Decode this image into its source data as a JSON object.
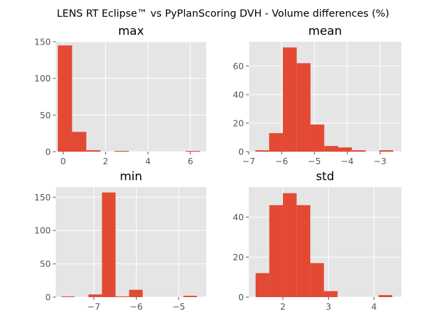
{
  "figure": {
    "suptitle": "LENS RT Eclipse™ vs PyPlanScoring DVH - Volume differences (%)"
  },
  "style": {
    "bar_color": "#E24A33",
    "axes_bg": "#E5E5E5",
    "grid_color": "#ffffff",
    "tick_color": "#555555"
  },
  "chart_data": [
    {
      "type": "bar",
      "title": "max",
      "xlabel": "",
      "ylabel": "",
      "xlim": [
        -0.35,
        6.75
      ],
      "ylim": [
        0,
        150
      ],
      "xticks": [
        0,
        2,
        4,
        6
      ],
      "yticks": [
        0,
        50,
        100,
        150
      ],
      "bins": [
        {
          "x0": -0.25,
          "x1": 0.42,
          "count": 145
        },
        {
          "x0": 0.42,
          "x1": 1.09,
          "count": 27
        },
        {
          "x0": 1.09,
          "x1": 1.76,
          "count": 2
        },
        {
          "x0": 1.76,
          "x1": 2.43,
          "count": 0
        },
        {
          "x0": 2.43,
          "x1": 3.1,
          "count": 1
        },
        {
          "x0": 3.1,
          "x1": 3.77,
          "count": 0
        },
        {
          "x0": 3.77,
          "x1": 4.44,
          "count": 0
        },
        {
          "x0": 4.44,
          "x1": 5.11,
          "count": 0
        },
        {
          "x0": 5.11,
          "x1": 5.78,
          "count": 0
        },
        {
          "x0": 5.78,
          "x1": 6.45,
          "count": 1
        }
      ]
    },
    {
      "type": "bar",
      "title": "mean",
      "xlabel": "",
      "ylabel": "",
      "xlim": [
        -7.0,
        -2.35
      ],
      "ylim": [
        0,
        77
      ],
      "xticks": [
        -7,
        -6,
        -5,
        -4,
        -3
      ],
      "yticks": [
        0,
        20,
        40,
        60
      ],
      "bins": [
        {
          "x0": -6.8,
          "x1": -6.38,
          "count": 1
        },
        {
          "x0": -6.38,
          "x1": -5.96,
          "count": 13
        },
        {
          "x0": -5.96,
          "x1": -5.54,
          "count": 73
        },
        {
          "x0": -5.54,
          "x1": -5.12,
          "count": 62
        },
        {
          "x0": -5.12,
          "x1": -4.7,
          "count": 19
        },
        {
          "x0": -4.7,
          "x1": -4.28,
          "count": 4
        },
        {
          "x0": -4.28,
          "x1": -3.86,
          "count": 3
        },
        {
          "x0": -3.86,
          "x1": -3.44,
          "count": 1
        },
        {
          "x0": -3.44,
          "x1": -3.02,
          "count": 0
        },
        {
          "x0": -3.02,
          "x1": -2.6,
          "count": 1
        }
      ]
    },
    {
      "type": "bar",
      "title": "min",
      "xlabel": "",
      "ylabel": "",
      "xlim": [
        -7.9,
        -4.35
      ],
      "ylim": [
        0,
        165
      ],
      "xticks": [
        -7,
        -6,
        -5
      ],
      "yticks": [
        0,
        50,
        100,
        150
      ],
      "bins": [
        {
          "x0": -7.77,
          "x1": -7.45,
          "count": 1
        },
        {
          "x0": -7.45,
          "x1": -7.13,
          "count": 0
        },
        {
          "x0": -7.13,
          "x1": -6.81,
          "count": 4
        },
        {
          "x0": -6.81,
          "x1": -6.49,
          "count": 157
        },
        {
          "x0": -6.49,
          "x1": -6.17,
          "count": 1
        },
        {
          "x0": -6.17,
          "x1": -5.85,
          "count": 11
        },
        {
          "x0": -5.85,
          "x1": -5.53,
          "count": 0
        },
        {
          "x0": -5.53,
          "x1": -5.21,
          "count": 0
        },
        {
          "x0": -5.21,
          "x1": -4.89,
          "count": 0
        },
        {
          "x0": -4.89,
          "x1": -4.57,
          "count": 2
        }
      ]
    },
    {
      "type": "bar",
      "title": "std",
      "xlabel": "",
      "ylabel": "",
      "xlim": [
        1.25,
        4.6
      ],
      "ylim": [
        0,
        55
      ],
      "xticks": [
        2,
        3,
        4
      ],
      "yticks": [
        0,
        20,
        40
      ],
      "bins": [
        {
          "x0": 1.4,
          "x1": 1.7,
          "count": 12
        },
        {
          "x0": 1.7,
          "x1": 2.0,
          "count": 46
        },
        {
          "x0": 2.0,
          "x1": 2.3,
          "count": 52
        },
        {
          "x0": 2.3,
          "x1": 2.6,
          "count": 46
        },
        {
          "x0": 2.6,
          "x1": 2.9,
          "count": 17
        },
        {
          "x0": 2.9,
          "x1": 3.2,
          "count": 3
        },
        {
          "x0": 3.2,
          "x1": 3.5,
          "count": 0
        },
        {
          "x0": 3.5,
          "x1": 3.8,
          "count": 0
        },
        {
          "x0": 3.8,
          "x1": 4.1,
          "count": 0
        },
        {
          "x0": 4.1,
          "x1": 4.4,
          "count": 1
        }
      ]
    }
  ]
}
